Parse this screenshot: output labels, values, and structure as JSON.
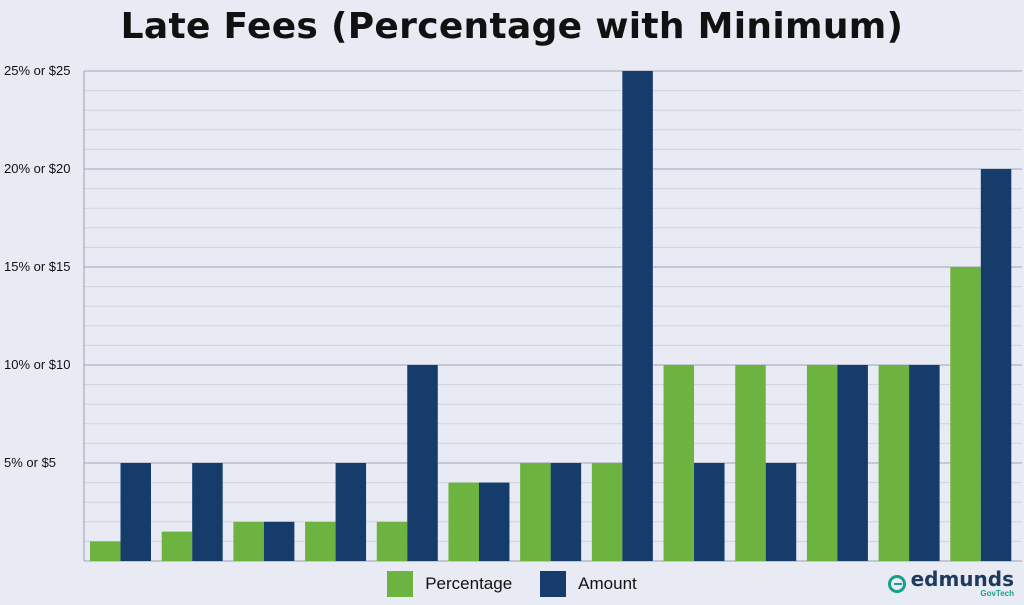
{
  "chart_data": {
    "type": "bar",
    "title": "Late Fees (Percentage with Minimum)",
    "xlabel": "",
    "ylabel": "",
    "ylim": [
      0,
      25
    ],
    "yticks": [
      {
        "value": 5,
        "label": "5% or $5"
      },
      {
        "value": 10,
        "label": "10% or $10"
      },
      {
        "value": 15,
        "label": "15% or $15"
      },
      {
        "value": 20,
        "label": "20% or $20"
      },
      {
        "value": 25,
        "label": "25% or $25"
      }
    ],
    "category_count": 13,
    "series": [
      {
        "name": "Percentage",
        "color": "#6db33f",
        "values": [
          1,
          1.5,
          2,
          2,
          2,
          4,
          5,
          5,
          10,
          10,
          10,
          10,
          15
        ]
      },
      {
        "name": "Amount",
        "color": "#163c6c",
        "values": [
          5,
          5,
          2,
          5,
          10,
          4,
          5,
          25,
          5,
          5,
          10,
          10,
          20
        ]
      }
    ],
    "grid": true,
    "legend": "bottom"
  },
  "brand": {
    "name": "edmunds",
    "sub": "GovTech"
  }
}
